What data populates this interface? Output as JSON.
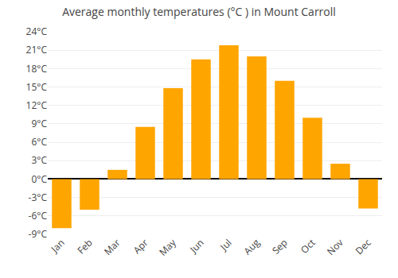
{
  "chart_data": {
    "type": "bar",
    "title": "Average monthly temperatures (°C ) in Mount Carroll",
    "categories": [
      "Jan",
      "Feb",
      "Mar",
      "Apr",
      "May",
      "Jun",
      "Jul",
      "Aug",
      "Sep",
      "Oct",
      "Nov",
      "Dec"
    ],
    "values": [
      -8.0,
      -5.0,
      1.5,
      8.5,
      14.8,
      19.5,
      21.8,
      20.0,
      16.0,
      10.0,
      2.5,
      -4.8
    ],
    "color": "#FFA500",
    "ylim": [
      -9,
      24
    ],
    "yticks": [
      {
        "value": -9,
        "label": "-9°C"
      },
      {
        "value": -6,
        "label": "-6°C"
      },
      {
        "value": -3,
        "label": "-3°C"
      },
      {
        "value": 0,
        "label": "0°C"
      },
      {
        "value": 3,
        "label": "3°C"
      },
      {
        "value": 6,
        "label": "6°C"
      },
      {
        "value": 9,
        "label": "9°C"
      },
      {
        "value": 12,
        "label": "12°C"
      },
      {
        "value": 15,
        "label": "15°C"
      },
      {
        "value": 18,
        "label": "18°C"
      },
      {
        "value": 21,
        "label": "21°C"
      },
      {
        "value": 24,
        "label": "24°C"
      }
    ],
    "grid": true
  }
}
